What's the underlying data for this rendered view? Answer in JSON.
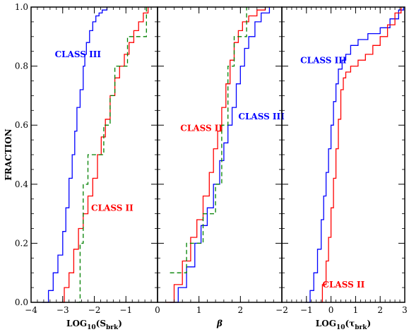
{
  "chart_data": [
    {
      "type": "line",
      "ylabel": "FRACTION",
      "xlabel_parts": {
        "base": "LOG",
        "sub1": "10",
        "open": "(S",
        "sub2": "brk",
        "close": ")"
      },
      "xlim": [
        -4,
        0
      ],
      "ylim": [
        0,
        1
      ],
      "xticks": [
        -4,
        -3,
        -2,
        -1
      ],
      "xtick_labels": [
        "−4",
        "−3",
        "−2",
        "−1"
      ],
      "yticks": [
        0,
        0.2,
        0.4,
        0.6,
        0.8,
        1.0
      ],
      "ytick_labels": [
        "0.0",
        "0.2",
        "0.4",
        "0.6",
        "0.8",
        "1.0"
      ],
      "annotations": [
        {
          "text": "CLASS III",
          "color": "#0000ff",
          "x": -3.25,
          "y": 0.83
        },
        {
          "text": "CLASS II",
          "color": "#ff0000",
          "x": -2.1,
          "y": 0.31
        }
      ],
      "series": [
        {
          "color": "#0000ff",
          "dash": "solid",
          "x": [
            -3.65,
            -3.45,
            -3.3,
            -3.15,
            -3.0,
            -2.9,
            -2.8,
            -2.7,
            -2.62,
            -2.55,
            -2.45,
            -2.35,
            -2.3,
            -2.25,
            -2.15,
            -2.05,
            -1.95,
            -1.85,
            -1.75,
            -1.6
          ],
          "y": [
            0.0,
            0.04,
            0.1,
            0.16,
            0.24,
            0.32,
            0.42,
            0.5,
            0.58,
            0.66,
            0.72,
            0.8,
            0.84,
            0.88,
            0.92,
            0.95,
            0.97,
            0.98,
            0.99,
            1.0
          ]
        },
        {
          "color": "#ff0000",
          "dash": "solid",
          "x": [
            -3.1,
            -2.95,
            -2.8,
            -2.65,
            -2.5,
            -2.35,
            -2.2,
            -2.05,
            -1.9,
            -1.78,
            -1.65,
            -1.5,
            -1.35,
            -1.2,
            -1.05,
            -0.9,
            -0.75,
            -0.6,
            -0.45,
            -0.3
          ],
          "y": [
            0.0,
            0.05,
            0.1,
            0.18,
            0.25,
            0.3,
            0.36,
            0.42,
            0.5,
            0.56,
            0.62,
            0.7,
            0.76,
            0.8,
            0.84,
            0.88,
            0.92,
            0.95,
            0.98,
            1.0
          ]
        },
        {
          "color": "#008000",
          "dash": "dashed",
          "x": [
            -2.55,
            -2.45,
            -2.35,
            -2.2,
            -2.05,
            -1.85,
            -1.7,
            -1.5,
            -1.35,
            -1.2,
            -0.95,
            -0.75,
            -0.55,
            -0.35
          ],
          "y": [
            0.0,
            0.2,
            0.4,
            0.5,
            0.5,
            0.5,
            0.6,
            0.7,
            0.8,
            0.8,
            0.9,
            0.9,
            0.9,
            1.0
          ]
        }
      ]
    },
    {
      "type": "line",
      "xlabel": "β",
      "xlim": [
        0,
        3
      ],
      "ylim": [
        0,
        1
      ],
      "xticks": [
        0,
        1,
        2
      ],
      "xtick_labels": [
        "0",
        "1",
        "2"
      ],
      "annotations": [
        {
          "text": "CLASS II",
          "color": "#ff0000",
          "x": 0.55,
          "y": 0.58
        },
        {
          "text": "CLASS III",
          "color": "#0000ff",
          "x": 1.95,
          "y": 0.62
        }
      ],
      "series": [
        {
          "color": "#0000ff",
          "dash": "solid",
          "x": [
            0.3,
            0.5,
            0.7,
            0.9,
            1.05,
            1.2,
            1.35,
            1.5,
            1.6,
            1.7,
            1.8,
            1.9,
            2.0,
            2.1,
            2.2,
            2.35,
            2.5,
            2.7
          ],
          "y": [
            0.0,
            0.05,
            0.12,
            0.2,
            0.26,
            0.32,
            0.4,
            0.48,
            0.54,
            0.6,
            0.66,
            0.74,
            0.8,
            0.86,
            0.9,
            0.95,
            0.98,
            1.0
          ]
        },
        {
          "color": "#ff0000",
          "dash": "solid",
          "x": [
            0.2,
            0.4,
            0.6,
            0.8,
            0.95,
            1.1,
            1.25,
            1.35,
            1.45,
            1.55,
            1.65,
            1.75,
            1.85,
            1.95,
            2.05,
            2.2,
            2.4,
            2.6
          ],
          "y": [
            0.0,
            0.06,
            0.14,
            0.22,
            0.28,
            0.36,
            0.44,
            0.52,
            0.58,
            0.66,
            0.74,
            0.82,
            0.88,
            0.92,
            0.95,
            0.97,
            0.99,
            1.0
          ]
        },
        {
          "color": "#008000",
          "dash": "dashed",
          "x": [
            0.3,
            0.5,
            0.7,
            0.9,
            1.1,
            1.25,
            1.4,
            1.55,
            1.7,
            1.85,
            2.0,
            2.15
          ],
          "y": [
            0.1,
            0.1,
            0.2,
            0.2,
            0.3,
            0.3,
            0.4,
            0.6,
            0.8,
            0.9,
            0.9,
            1.0
          ]
        }
      ]
    },
    {
      "type": "line",
      "xlabel_parts": {
        "base": "LOG",
        "sub1": "10",
        "open": "(τ",
        "sub2": "brk",
        "close": ")"
      },
      "xlim": [
        -2,
        3
      ],
      "ylim": [
        0,
        1
      ],
      "xticks": [
        -2,
        -1,
        0,
        1,
        2,
        3
      ],
      "xtick_labels": [
        "−2",
        "−1",
        "0",
        "1",
        "2",
        "3"
      ],
      "annotations": [
        {
          "text": "CLASS III",
          "color": "#0000ff",
          "x": -1.25,
          "y": 0.81
        },
        {
          "text": "CLASS II",
          "color": "#ff0000",
          "x": -0.35,
          "y": 0.05
        }
      ],
      "series": [
        {
          "color": "#0000ff",
          "dash": "solid",
          "x": [
            -1.05,
            -0.85,
            -0.7,
            -0.55,
            -0.4,
            -0.3,
            -0.2,
            -0.1,
            0.0,
            0.1,
            0.2,
            0.3,
            0.45,
            0.6,
            0.8,
            1.1,
            1.5,
            2.0,
            2.4,
            2.75,
            2.95
          ],
          "y": [
            0.0,
            0.04,
            0.1,
            0.18,
            0.28,
            0.36,
            0.44,
            0.52,
            0.6,
            0.68,
            0.74,
            0.79,
            0.82,
            0.84,
            0.87,
            0.89,
            0.91,
            0.93,
            0.96,
            0.99,
            1.0
          ]
        },
        {
          "color": "#ff0000",
          "dash": "solid",
          "x": [
            -0.5,
            -0.35,
            -0.2,
            -0.1,
            0.0,
            0.1,
            0.2,
            0.3,
            0.4,
            0.5,
            0.6,
            0.8,
            1.1,
            1.4,
            1.7,
            2.0,
            2.3,
            2.6,
            2.85
          ],
          "y": [
            0.0,
            0.06,
            0.14,
            0.22,
            0.32,
            0.42,
            0.52,
            0.62,
            0.72,
            0.76,
            0.78,
            0.8,
            0.82,
            0.84,
            0.87,
            0.9,
            0.94,
            0.98,
            1.0
          ]
        }
      ]
    }
  ]
}
